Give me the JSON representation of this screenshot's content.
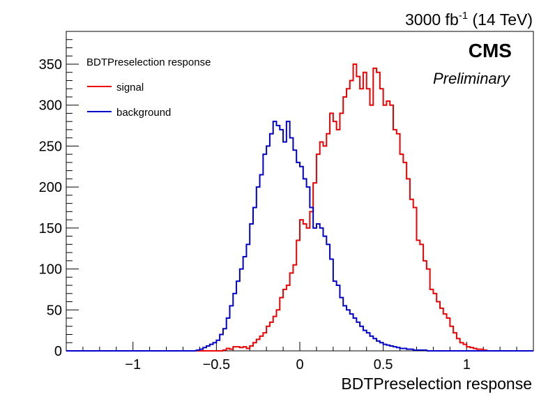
{
  "chart_data": {
    "type": "histogram",
    "xlabel": "BDTPreselection response",
    "ylabel": "",
    "xlim": [
      -1.4,
      1.4
    ],
    "ylim": [
      0,
      390
    ],
    "bin_width": 0.02,
    "x_ticks": [
      -1,
      -0.5,
      0,
      0.5,
      1
    ],
    "x_tick_labels": [
      "−1",
      "−0.5",
      "0",
      "0.5",
      "1"
    ],
    "y_ticks": [
      0,
      50,
      100,
      150,
      200,
      250,
      300,
      350
    ],
    "y_tick_labels": [
      "0",
      "50",
      "100",
      "150",
      "200",
      "250",
      "300",
      "350"
    ],
    "lumi_label": "3000 fb",
    "lumi_sup": "-1",
    "lumi_energy": " (14 TeV)",
    "experiment": "CMS",
    "status": "Preliminary",
    "legend": {
      "placement": "top-left",
      "header": "BDTPreselection response",
      "entries": [
        {
          "label": "signal",
          "color": "#ee0000"
        },
        {
          "label": "background",
          "color": "#0000cc"
        }
      ]
    },
    "series": [
      {
        "name": "signal",
        "color": "#ee0000",
        "bin_start": -0.46,
        "values": [
          1,
          3,
          2,
          5,
          5,
          4,
          5,
          3,
          6,
          10,
          14,
          18,
          22,
          30,
          35,
          42,
          50,
          65,
          75,
          80,
          95,
          105,
          135,
          160,
          155,
          150,
          170,
          205,
          240,
          255,
          250,
          265,
          290,
          280,
          270,
          290,
          310,
          320,
          330,
          350,
          335,
          320,
          340,
          320,
          300,
          345,
          340,
          320,
          300,
          305,
          300,
          270,
          265,
          240,
          230,
          210,
          185,
          175,
          135,
          130,
          110,
          100,
          75,
          70,
          60,
          52,
          45,
          40,
          30,
          22,
          15,
          10,
          8,
          5,
          4,
          3,
          2,
          2,
          1
        ]
      },
      {
        "name": "background",
        "color": "#0000cc",
        "bin_start": -0.62,
        "values": [
          1,
          2,
          4,
          6,
          8,
          10,
          13,
          20,
          27,
          40,
          55,
          70,
          85,
          100,
          115,
          130,
          155,
          175,
          200,
          215,
          240,
          250,
          265,
          280,
          275,
          270,
          255,
          280,
          260,
          245,
          230,
          225,
          210,
          200,
          175,
          150,
          155,
          150,
          140,
          130,
          112,
          85,
          80,
          65,
          55,
          50,
          45,
          40,
          35,
          30,
          25,
          22,
          18,
          15,
          12,
          10,
          8,
          7,
          6,
          5,
          4,
          3,
          3,
          2,
          2,
          1,
          1,
          1,
          1
        ]
      }
    ]
  }
}
